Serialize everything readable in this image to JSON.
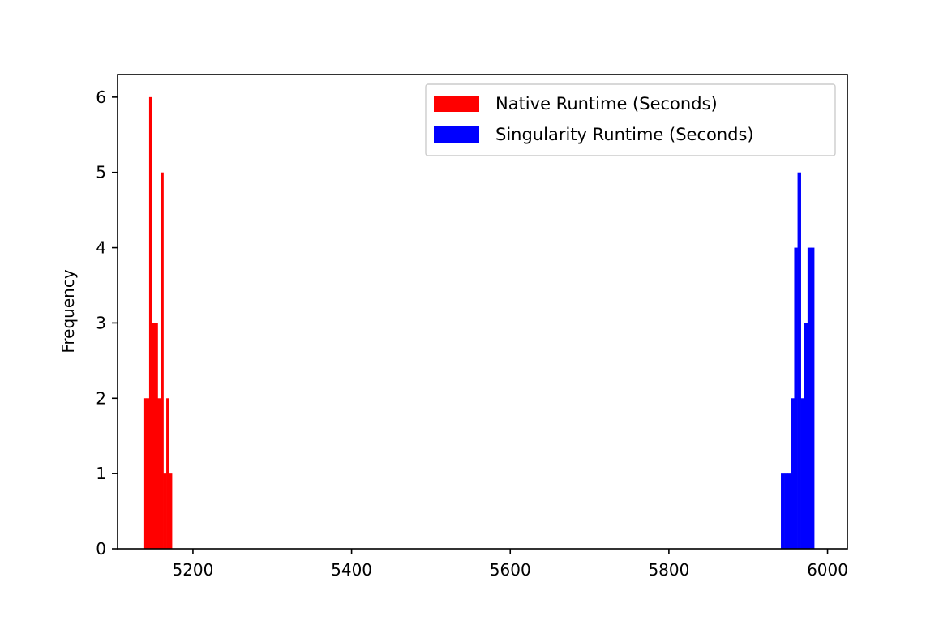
{
  "chart_data": {
    "type": "bar",
    "subtype": "histogram",
    "title": "",
    "xlabel": "",
    "ylabel": "Frequency",
    "xlim": [
      5105,
      6025
    ],
    "ylim": [
      0,
      6.3
    ],
    "x_ticks": [
      5200,
      5400,
      5600,
      5800,
      6000
    ],
    "y_ticks": [
      0,
      1,
      2,
      3,
      4,
      5,
      6
    ],
    "grid": false,
    "legend_position": "top-right",
    "series": [
      {
        "name": "Native Runtime (Seconds)",
        "color": "#ff0000",
        "bins": [
          {
            "x0": 5137.6,
            "x1": 5141.2,
            "count": 2
          },
          {
            "x0": 5141.2,
            "x1": 5144.8,
            "count": 2
          },
          {
            "x0": 5144.8,
            "x1": 5148.4,
            "count": 6
          },
          {
            "x0": 5148.4,
            "x1": 5152.0,
            "count": 3
          },
          {
            "x0": 5152.0,
            "x1": 5155.6,
            "count": 3
          },
          {
            "x0": 5155.6,
            "x1": 5159.2,
            "count": 2
          },
          {
            "x0": 5159.2,
            "x1": 5162.8,
            "count": 5
          },
          {
            "x0": 5162.8,
            "x1": 5166.4,
            "count": 1
          },
          {
            "x0": 5166.4,
            "x1": 5170.0,
            "count": 2
          },
          {
            "x0": 5170.0,
            "x1": 5173.6,
            "count": 1
          }
        ]
      },
      {
        "name": "Singularity Runtime (Seconds)",
        "color": "#0000ff",
        "bins": [
          {
            "x0": 5941.2,
            "x1": 5945.4,
            "count": 1
          },
          {
            "x0": 5945.4,
            "x1": 5949.6,
            "count": 1
          },
          {
            "x0": 5949.6,
            "x1": 5953.8,
            "count": 1
          },
          {
            "x0": 5953.8,
            "x1": 5958.0,
            "count": 2
          },
          {
            "x0": 5958.0,
            "x1": 5962.2,
            "count": 4
          },
          {
            "x0": 5962.2,
            "x1": 5966.4,
            "count": 5
          },
          {
            "x0": 5966.4,
            "x1": 5970.6,
            "count": 2
          },
          {
            "x0": 5970.6,
            "x1": 5974.8,
            "count": 3
          },
          {
            "x0": 5974.8,
            "x1": 5979.0,
            "count": 4
          },
          {
            "x0": 5979.0,
            "x1": 5983.2,
            "count": 4
          }
        ]
      }
    ]
  }
}
